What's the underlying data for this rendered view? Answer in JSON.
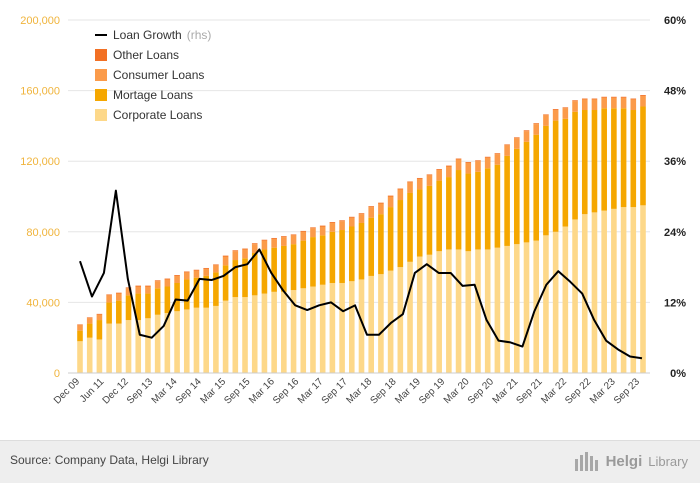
{
  "chart_data": {
    "type": "bar",
    "stacked": true,
    "secondary_type": "line",
    "x_tick_labels": [
      "Dec 09",
      "Jun 11",
      "Dec 12",
      "Sep 13",
      "Mar 14",
      "Sep 14",
      "Mar 15",
      "Sep 15",
      "Mar 16",
      "Sep 16",
      "Mar 17",
      "Sep 17",
      "Mar 18",
      "Sep 18",
      "Mar 19",
      "Sep 19",
      "Mar 20",
      "Sep 20",
      "Mar 21",
      "Sep 21",
      "Mar 22",
      "Sep 22",
      "Mar 23",
      "Sep 23"
    ],
    "y_left": {
      "lim": [
        0,
        200000
      ],
      "ticks": [
        "0",
        "40,000",
        "80,000",
        "120,000",
        "160,000",
        "200,000"
      ]
    },
    "y_right": {
      "lim": [
        0,
        60
      ],
      "ticks": [
        "0%",
        "12%",
        "24%",
        "36%",
        "48%",
        "60%"
      ]
    },
    "series": [
      {
        "name": "Corporate Loans",
        "color": "#fdd889",
        "values": [
          18000,
          20000,
          19000,
          28000,
          28000,
          30000,
          30000,
          31000,
          33000,
          34000,
          35000,
          36000,
          37000,
          37000,
          38000,
          41000,
          43000,
          43000,
          44000,
          45000,
          46000,
          46000,
          47000,
          48000,
          49000,
          50000,
          51000,
          51000,
          52000,
          53000,
          55000,
          56000,
          58000,
          60000,
          63000,
          66000,
          67000,
          69000,
          70000,
          70000,
          69000,
          70000,
          70000,
          71000,
          72000,
          73000,
          74000,
          75000,
          78000,
          80000,
          83000,
          87000,
          90000,
          91000,
          92000,
          93000,
          94000,
          94000,
          95000
        ]
      },
      {
        "name": "Mortage Loans",
        "color": "#f5a700",
        "values": [
          6000,
          8000,
          11000,
          12000,
          13000,
          14000,
          15000,
          14000,
          15000,
          15000,
          16000,
          17000,
          17000,
          18000,
          19000,
          20000,
          21000,
          22000,
          24000,
          25000,
          25000,
          26000,
          26000,
          27000,
          28000,
          28000,
          29000,
          30000,
          31000,
          32000,
          33000,
          34000,
          36000,
          38000,
          39000,
          38000,
          39000,
          40000,
          41000,
          45000,
          44000,
          44000,
          46000,
          47000,
          51000,
          54000,
          57000,
          60000,
          62000,
          63000,
          61000,
          61000,
          59000,
          58000,
          58000,
          57000,
          56000,
          55000,
          56000
        ]
      },
      {
        "name": "Consumer Loans",
        "color": "#fb9b4a",
        "values": [
          3000,
          3000,
          3000,
          4000,
          4000,
          4000,
          4000,
          4000,
          4000,
          4000,
          4000,
          4000,
          4000,
          4000,
          4000,
          5000,
          5000,
          5000,
          5000,
          5000,
          5000,
          5000,
          5000,
          5000,
          5000,
          5000,
          5000,
          5000,
          5000,
          5000,
          6000,
          6000,
          6000,
          6000,
          6000,
          6000,
          6000,
          6000,
          6000,
          6000,
          6000,
          6000,
          6000,
          6000,
          6000,
          6000,
          6000,
          6000,
          6000,
          6000,
          6000,
          6000,
          6000,
          6000,
          6000,
          6000,
          6000,
          6000,
          6000
        ]
      },
      {
        "name": "Other Loans",
        "color": "#f27024",
        "values": [
          500,
          500,
          500,
          500,
          500,
          500,
          500,
          500,
          500,
          500,
          500,
          500,
          500,
          500,
          500,
          500,
          500,
          500,
          500,
          500,
          500,
          500,
          500,
          500,
          500,
          500,
          500,
          500,
          500,
          500,
          500,
          500,
          500,
          500,
          500,
          500,
          500,
          500,
          500,
          500,
          500,
          500,
          500,
          500,
          500,
          500,
          500,
          500,
          500,
          500,
          500,
          500,
          500,
          500,
          500,
          500,
          500,
          500,
          500
        ]
      },
      {
        "name": "Loan Growth",
        "name_suffix": "(rhs)",
        "color": "#000000",
        "axis": "right",
        "type": "line",
        "values": [
          19,
          13,
          17,
          31,
          16,
          6.5,
          6,
          8,
          12.5,
          12.3,
          16,
          15.8,
          16.5,
          18,
          18.5,
          21,
          17,
          14,
          11.5,
          10.7,
          11.5,
          12,
          10.5,
          11.5,
          6.5,
          6.5,
          8.5,
          10,
          17,
          18.5,
          17,
          17,
          14.8,
          15,
          9,
          5.5,
          5.2,
          4.5,
          10.5,
          15,
          17.3,
          15.5,
          13.5,
          9,
          5.5,
          4,
          2.8,
          2.5
        ]
      }
    ]
  },
  "legend": [
    {
      "label": "Loan Growth",
      "suffix": "(rhs)",
      "color": "#000000",
      "kind": "line"
    },
    {
      "label": "Other Loans",
      "color": "#f27024",
      "kind": "box"
    },
    {
      "label": "Consumer Loans",
      "color": "#fb9b4a",
      "kind": "box"
    },
    {
      "label": "Mortage Loans",
      "color": "#f5a700",
      "kind": "box"
    },
    {
      "label": "Corporate Loans",
      "color": "#fdd889",
      "kind": "box"
    }
  ],
  "footer": {
    "source": "Source: Company Data, Helgi Library",
    "brand_name": "Helgi",
    "brand_suffix": "Library"
  }
}
